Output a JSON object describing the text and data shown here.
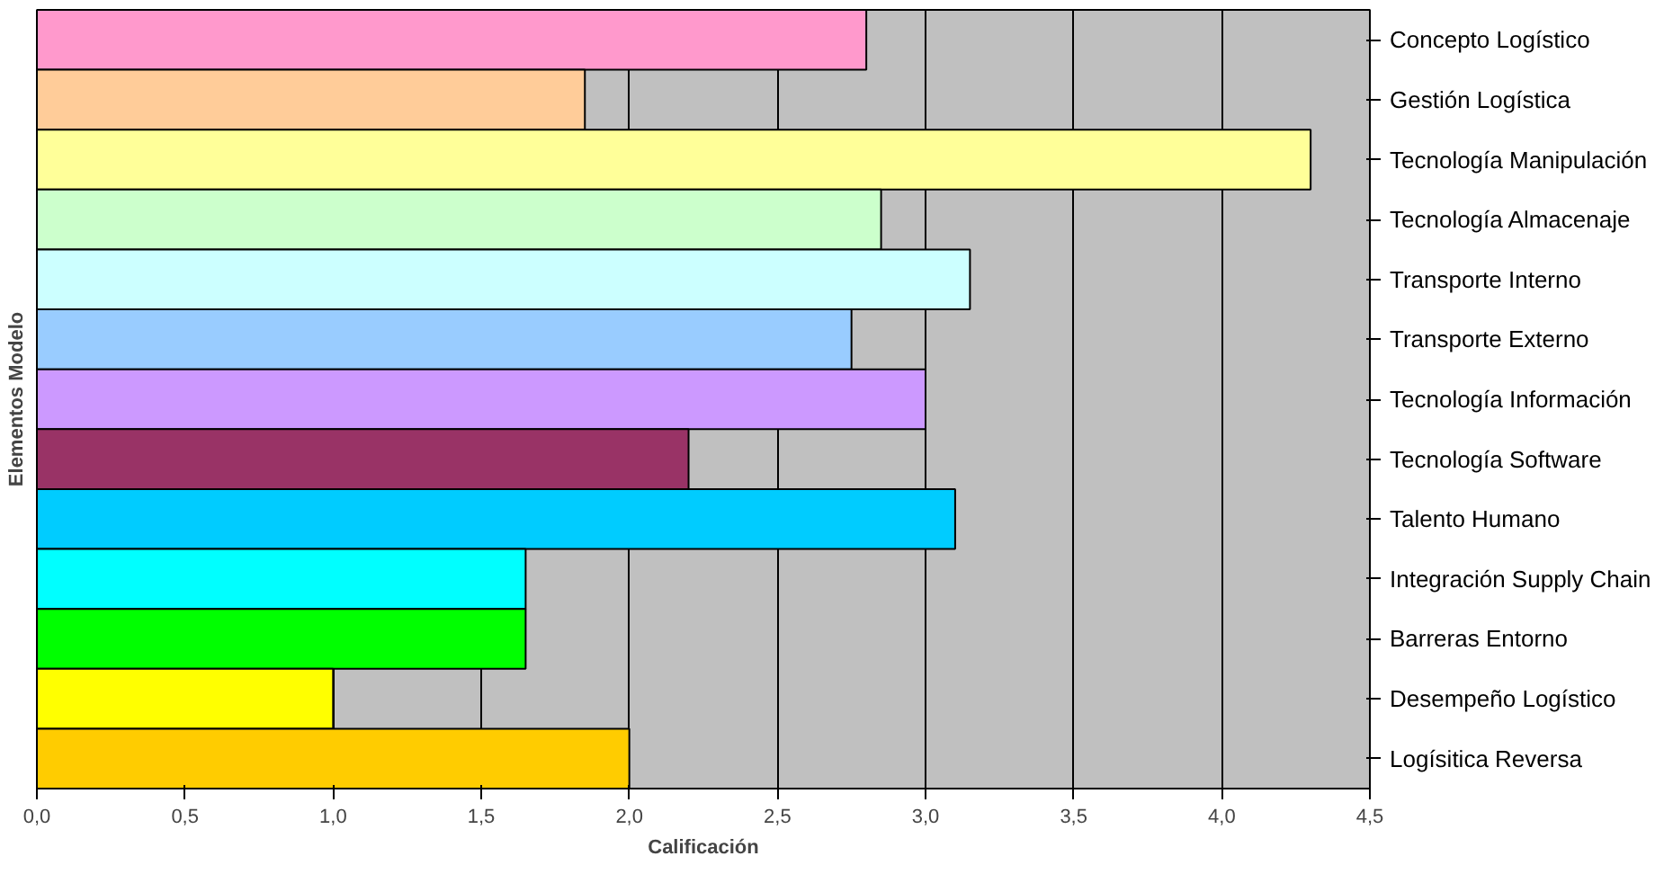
{
  "chart_data": {
    "type": "bar",
    "orientation": "horizontal",
    "xlabel": "Calificación",
    "ylabel": "Elementos Modelo",
    "categories": [
      "Concepto Logístico",
      "Gestión Logística",
      "Tecnología Manipulación",
      "Tecnología Almacenaje",
      "Transporte Interno",
      "Transporte Externo",
      "Tecnología Información",
      "Tecnología Software",
      "Talento Humano",
      "Integración Supply Chain",
      "Barreras Entorno",
      "Desempeño Logístico",
      "Logísitica Reversa"
    ],
    "values": [
      2.8,
      1.85,
      4.3,
      2.85,
      3.15,
      2.75,
      3.0,
      2.2,
      3.1,
      1.65,
      1.65,
      1.0,
      2.0
    ],
    "colors": [
      "#ff99cc",
      "#ffcc99",
      "#ffff99",
      "#ccffcc",
      "#ccffff",
      "#99ccff",
      "#cc99ff",
      "#993366",
      "#00ccff",
      "#00ffff",
      "#00ff00",
      "#ffff00",
      "#ffcc00"
    ],
    "xlim": [
      0,
      4.5
    ],
    "xticks": [
      {
        "value": 0,
        "label": "0,0"
      },
      {
        "value": 0.5,
        "label": "0,5"
      },
      {
        "value": 1,
        "label": "1,0"
      },
      {
        "value": 1.5,
        "label": "1,5"
      },
      {
        "value": 2,
        "label": "2,0"
      },
      {
        "value": 2.5,
        "label": "2,5"
      },
      {
        "value": 3,
        "label": "3,0"
      },
      {
        "value": 3.5,
        "label": "3,5"
      },
      {
        "value": 4,
        "label": "4,0"
      },
      {
        "value": 4.5,
        "label": "4,5"
      }
    ],
    "grid": "x"
  }
}
